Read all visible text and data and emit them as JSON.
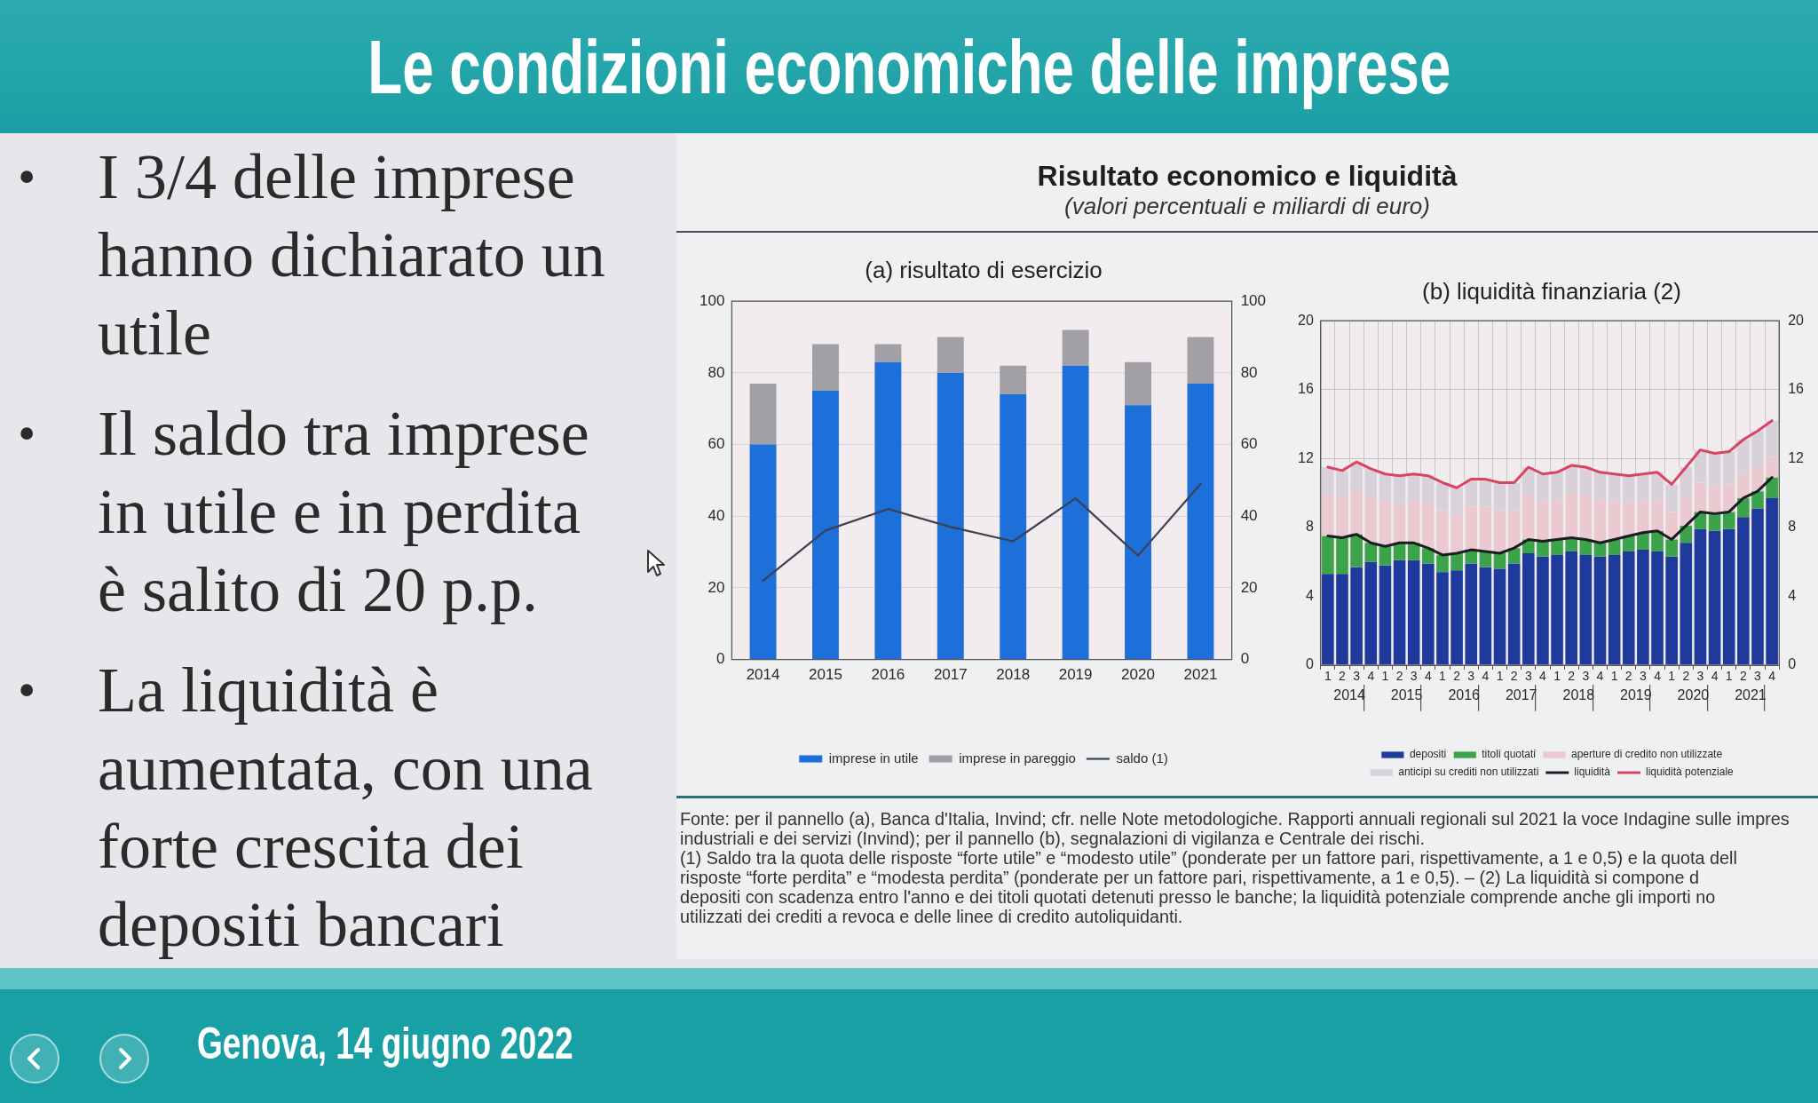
{
  "chart_data": [
    {
      "type": "other",
      "title": "Le condizioni economiche delle imprese",
      "subtitle": "Genova, 14 giugno 2022",
      "annotations": [
        "• I 3/4 delle imprese hanno dichiarato un utile",
        "• Il saldo tra imprese in utile e in perdita è salito di 20 p.p.",
        "• La liquidità è aumentata, con una forte crescita dei depositi bancari"
      ]
    },
    {
      "type": "other",
      "title": "Risultato economico e liquidità",
      "subtitle": "(valori percentuali e miliardi di euro)",
      "annotations": [
        "Fonte: per il pannello (a), Banca d'Italia, Invind; cfr. nelle Note metodologiche. Rapporti annuali regionali sul 2021 la voce Indagine sulle impres",
        "industriali e dei servizi (Invind); per il pannello (b), segnalazioni di vigilanza e Centrale dei rischi.",
        "(1) Saldo tra la quota delle risposte “forte utile” e “modesto utile” (ponderate per un fattore pari, rispettivamente, a 1 e 0,5) e la quota dell",
        "risposte “forte perdita” e “modesta perdita” (ponderate per un fattore pari, rispettivamente, a 1 e 0,5). – (2) La liquidità si compone d",
        "depositi con scadenza entro l'anno e dei titoli quotati detenuti presso le banche; la liquidità potenziale comprende anche gli importi no",
        "utilizzati dei crediti a revoca e delle linee di credito autoliquidanti."
      ]
    },
    {
      "type": "bar",
      "title": "(a) risultato di esercizio",
      "categories": [
        "2014",
        "2015",
        "2016",
        "2017",
        "2018",
        "2019",
        "2020",
        "2021"
      ],
      "stacked": true,
      "series": [
        {
          "name": "imprese in utile",
          "color": "#1d6fd9",
          "values": [
            60,
            75,
            83,
            80,
            74,
            82,
            71,
            77
          ]
        },
        {
          "name": "imprese in pareggio",
          "color": "#a1a0a6",
          "values": [
            17,
            13,
            5,
            10,
            8,
            10,
            12,
            13
          ]
        },
        {
          "name": "saldo (1)",
          "type": "line",
          "color": "#3c4150",
          "values": [
            22,
            36,
            42,
            37,
            33,
            45,
            29,
            49
          ]
        }
      ],
      "ylim": [
        0,
        100
      ],
      "yticks": [
        0,
        20,
        40,
        60,
        80,
        100
      ],
      "y2lim": [
        0,
        100
      ],
      "y2ticks": [
        0,
        20,
        40,
        60,
        80,
        100
      ],
      "grid": "y",
      "legend": "bottom"
    },
    {
      "type": "bar",
      "title": "(b) liquidità finanziaria (2)",
      "stacked": true,
      "categories": [
        "1",
        "2",
        "3",
        "4",
        "1",
        "2",
        "3",
        "4",
        "1",
        "2",
        "3",
        "4",
        "1",
        "2",
        "3",
        "4",
        "1",
        "2",
        "3",
        "4",
        "1",
        "2",
        "3",
        "4",
        "1",
        "2",
        "3",
        "4",
        "1",
        "2",
        "3",
        "4"
      ],
      "series": [
        {
          "name": "depositi",
          "color": "#1d3a9c",
          "values": [
            5.3,
            5.3,
            5.7,
            6.0,
            5.8,
            6.1,
            6.1,
            5.9,
            5.4,
            5.5,
            5.9,
            5.7,
            5.6,
            5.9,
            6.5,
            6.3,
            6.4,
            6.6,
            6.4,
            6.3,
            6.4,
            6.6,
            6.7,
            6.6,
            6.3,
            7.1,
            7.9,
            7.8,
            7.9,
            8.6,
            9.1,
            9.7
          ]
        },
        {
          "name": "titoli quotati",
          "color": "#3ba34a",
          "values": [
            2.2,
            2.1,
            1.9,
            1.1,
            1.1,
            1.0,
            1.0,
            0.9,
            1.0,
            1.0,
            0.8,
            0.9,
            0.9,
            0.9,
            0.8,
            0.9,
            0.9,
            0.8,
            0.9,
            0.8,
            0.9,
            0.9,
            1.0,
            1.2,
            1.0,
            1.0,
            1.0,
            1.0,
            1.0,
            1.1,
            1.0,
            1.2
          ]
        },
        {
          "name": "aperture di credito non utilizzate",
          "color": "#eac9d0",
          "values": [
            2.4,
            2.3,
            2.6,
            2.7,
            2.6,
            2.3,
            2.4,
            2.6,
            2.6,
            2.2,
            2.5,
            2.6,
            2.5,
            2.2,
            2.6,
            2.3,
            2.3,
            2.6,
            2.6,
            2.5,
            2.2,
            1.9,
            1.8,
            1.8,
            1.6,
            1.6,
            1.7,
            1.6,
            1.6,
            1.4,
            1.4,
            1.2
          ]
        },
        {
          "name": "anticipi su crediti non utilizzati",
          "color": "#d9d1da",
          "values": [
            1.6,
            1.6,
            1.6,
            1.6,
            1.6,
            1.6,
            1.6,
            1.6,
            1.6,
            1.6,
            1.6,
            1.6,
            1.6,
            1.6,
            1.6,
            1.6,
            1.6,
            1.6,
            1.6,
            1.6,
            1.6,
            1.6,
            1.6,
            1.6,
            1.6,
            1.8,
            1.9,
            1.9,
            1.9,
            2.0,
            2.1,
            2.1
          ]
        },
        {
          "name": "liquidità",
          "type": "line",
          "color": "#1c1c24",
          "values": [
            7.5,
            7.4,
            7.6,
            7.1,
            6.9,
            7.1,
            7.1,
            6.8,
            6.4,
            6.5,
            6.7,
            6.6,
            6.5,
            6.8,
            7.3,
            7.2,
            7.3,
            7.4,
            7.3,
            7.1,
            7.3,
            7.5,
            7.7,
            7.8,
            7.3,
            8.1,
            8.9,
            8.8,
            8.9,
            9.7,
            10.1,
            10.9
          ]
        },
        {
          "name": "liquidità potenziale",
          "type": "line",
          "color": "#d94461",
          "values": [
            11.5,
            11.3,
            11.8,
            11.4,
            11.1,
            11.0,
            11.1,
            11.0,
            10.6,
            10.3,
            10.8,
            10.8,
            10.6,
            10.6,
            11.5,
            11.1,
            11.2,
            11.6,
            11.5,
            11.2,
            11.1,
            11.0,
            11.1,
            11.2,
            10.5,
            11.5,
            12.5,
            12.3,
            12.4,
            13.1,
            13.6,
            14.2
          ]
        }
      ],
      "x2lim": [
        2014,
        2022
      ],
      "x2ticks": [
        {
          "value": 2014,
          "label": null
        },
        {
          "value": 2014.5,
          "label": "2014"
        },
        {
          "value": 2015,
          "label": null
        },
        {
          "value": 2015.5,
          "label": "2015"
        },
        {
          "value": 2016,
          "label": null
        },
        {
          "value": 2016.5,
          "label": "2016"
        },
        {
          "value": 2017,
          "label": null
        },
        {
          "value": 2017.5,
          "label": "2017"
        },
        {
          "value": 2018,
          "label": null
        },
        {
          "value": 2018.5,
          "label": "2018"
        },
        {
          "value": 2019,
          "label": null
        },
        {
          "value": 2019.5,
          "label": "2019"
        },
        {
          "value": 2020,
          "label": null
        },
        {
          "value": 2020.5,
          "label": "2020"
        },
        {
          "value": 2021,
          "label": null
        },
        {
          "value": 2021.5,
          "label": "2021"
        },
        {
          "value": 2022,
          "label": null
        }
      ],
      "ylim": [
        0,
        20
      ],
      "yticks": [
        0,
        4,
        8,
        12,
        16,
        20
      ],
      "y2lim": [
        0,
        20
      ],
      "y2ticks": [
        0,
        4,
        8,
        12,
        16,
        20
      ],
      "grid": true,
      "legend": "bottom"
    }
  ]
}
